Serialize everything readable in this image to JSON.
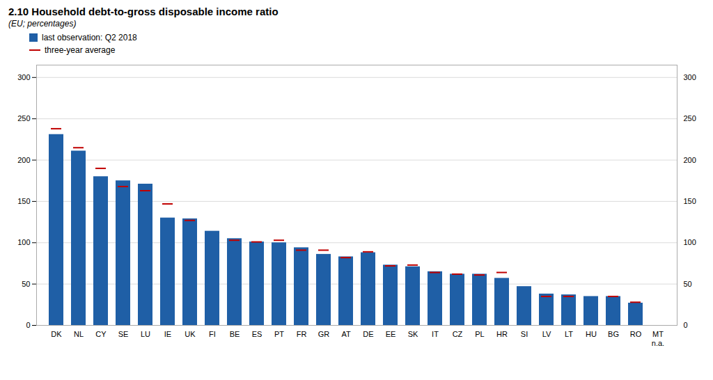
{
  "chart_data": {
    "type": "bar",
    "title": "2.10 Household debt-to-gross disposable income ratio",
    "subtitle": "(EU; percentages)",
    "categories": [
      "DK",
      "NL",
      "CY",
      "SE",
      "LU",
      "IE",
      "UK",
      "FI",
      "BE",
      "ES",
      "PT",
      "FR",
      "GR",
      "AT",
      "DE",
      "EE",
      "SK",
      "IT",
      "CZ",
      "PL",
      "HR",
      "SI",
      "LV",
      "LT",
      "HU",
      "BG",
      "RO",
      "MT"
    ],
    "series": [
      {
        "name": "last observation: Q2 2018",
        "type": "bar",
        "color": "#1f5fa6",
        "values": [
          231,
          211,
          180,
          175,
          171,
          130,
          129,
          114,
          105,
          101,
          100,
          94,
          86,
          83,
          88,
          73,
          71,
          65,
          62,
          62,
          57,
          47,
          38,
          37,
          35,
          35,
          27,
          null
        ]
      },
      {
        "name": "three-year average",
        "type": "tick",
        "color": "#c00000",
        "values": [
          238,
          215,
          190,
          168,
          163,
          147,
          127,
          null,
          103,
          101,
          103,
          91,
          91,
          82,
          89,
          72,
          73,
          64,
          62,
          61,
          64,
          null,
          35,
          35,
          null,
          35,
          28,
          null
        ]
      }
    ],
    "annotations": [
      {
        "text": "n.a.",
        "x": "MT"
      }
    ],
    "ylim": [
      0,
      315
    ],
    "yticks": [
      0,
      50,
      100,
      150,
      200,
      250,
      300
    ],
    "y2lim": [
      0,
      315
    ],
    "y2ticks": [
      0,
      50,
      100,
      150,
      200,
      250,
      300
    ],
    "grid": true,
    "legend": "top left"
  }
}
